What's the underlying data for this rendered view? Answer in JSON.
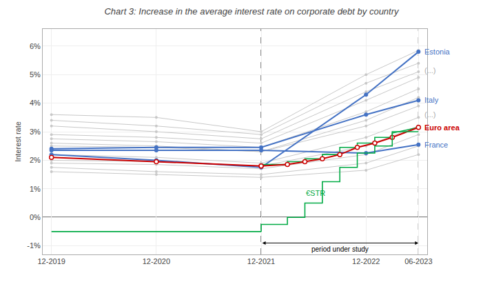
{
  "chart_data": {
    "type": "line",
    "title": "Chart 3: Increase in the average interest rate on corporate debt by country",
    "ylabel": "Interest rate",
    "xlim": [
      -1,
      43
    ],
    "xticks": [
      {
        "value": 0,
        "label": "12-2019"
      },
      {
        "value": 12,
        "label": "12-2020"
      },
      {
        "value": 24,
        "label": "12-2021"
      },
      {
        "value": 36,
        "label": "12-2022"
      },
      {
        "value": 42,
        "label": "06-2023"
      }
    ],
    "ylim": [
      -1.3,
      6.6
    ],
    "yticks": [
      {
        "value": -1,
        "label": "-1%"
      },
      {
        "value": 0,
        "label": "0%"
      },
      {
        "value": 1,
        "label": "1%"
      },
      {
        "value": 2,
        "label": "2%"
      },
      {
        "value": 3,
        "label": "3%"
      },
      {
        "value": 4,
        "label": "4%"
      },
      {
        "value": 5,
        "label": "5%"
      },
      {
        "value": 6,
        "label": "6%"
      }
    ],
    "grid": true,
    "series": [
      {
        "x": [
          0,
          12,
          24,
          36,
          42
        ],
        "values": [
          3.6,
          3.5,
          3.0,
          5.0,
          5.85
        ],
        "color": "#C8C8C8",
        "marker": "small_circle",
        "line_style": "solid"
      },
      {
        "x": [
          0,
          12,
          24,
          36,
          42
        ],
        "values": [
          3.4,
          3.2,
          2.9,
          4.7,
          5.4
        ],
        "color": "#C8C8C8",
        "marker": "small_circle",
        "line_style": "solid"
      },
      {
        "x": [
          0,
          12,
          24,
          36,
          42
        ],
        "values": [
          3.2,
          3.0,
          2.75,
          4.4,
          5.1
        ],
        "color": "#C8C8C8",
        "marker": "small_circle",
        "line_style": "solid"
      },
      {
        "x": [
          0,
          12,
          24,
          36,
          42
        ],
        "values": [
          2.9,
          2.8,
          2.6,
          4.1,
          4.9
        ],
        "color": "#C8C8C8",
        "marker": "small_circle",
        "line_style": "solid"
      },
      {
        "x": [
          0,
          12,
          24,
          36,
          42
        ],
        "values": [
          2.75,
          2.65,
          2.45,
          3.7,
          4.5
        ],
        "color": "#C8C8C8",
        "marker": "small_circle",
        "line_style": "solid"
      },
      {
        "x": [
          0,
          12,
          24,
          36,
          42
        ],
        "values": [
          2.6,
          2.5,
          2.3,
          3.4,
          4.2
        ],
        "color": "#C8C8C8",
        "marker": "small_circle",
        "line_style": "solid"
      },
      {
        "x": [
          0,
          12,
          24,
          36,
          42
        ],
        "values": [
          2.5,
          2.45,
          2.3,
          3.2,
          3.9
        ],
        "color": "#C8C8C8",
        "marker": "small_circle",
        "line_style": "solid"
      },
      {
        "x": [
          0,
          12,
          24,
          36,
          42
        ],
        "values": [
          2.2,
          2.1,
          1.9,
          2.8,
          3.5
        ],
        "color": "#C8C8C8",
        "marker": "small_circle",
        "line_style": "solid"
      },
      {
        "x": [
          0,
          12,
          24,
          36,
          42
        ],
        "values": [
          2.0,
          1.95,
          1.8,
          2.5,
          3.2
        ],
        "color": "#C8C8C8",
        "marker": "small_circle",
        "line_style": "solid"
      },
      {
        "x": [
          0,
          12,
          24,
          36,
          42
        ],
        "values": [
          1.9,
          1.85,
          1.7,
          2.2,
          2.9
        ],
        "color": "#C8C8C8",
        "marker": "small_circle",
        "line_style": "solid"
      },
      {
        "x": [
          0,
          12,
          24,
          36,
          42
        ],
        "values": [
          1.75,
          1.6,
          1.5,
          1.9,
          2.5
        ],
        "color": "#C8C8C8",
        "marker": "small_circle",
        "line_style": "solid"
      },
      {
        "x": [
          0,
          12,
          24,
          36,
          42
        ],
        "values": [
          1.6,
          1.5,
          1.4,
          1.65,
          2.2
        ],
        "color": "#C8C8C8",
        "marker": "small_circle",
        "line_style": "solid"
      },
      {
        "x": [
          0,
          12,
          24,
          36,
          42
        ],
        "values": [
          2.2,
          2.0,
          1.75,
          4.3,
          5.8
        ],
        "color": "#4472C4",
        "marker": "circle",
        "line_style": "solid"
      },
      {
        "x": [
          0,
          12,
          24,
          36,
          42
        ],
        "values": [
          2.4,
          2.45,
          2.45,
          3.6,
          4.1
        ],
        "color": "#4472C4",
        "marker": "circle",
        "line_style": "solid"
      },
      {
        "x": [
          0,
          12,
          24,
          36,
          42
        ],
        "values": [
          2.35,
          2.35,
          2.35,
          2.25,
          2.55
        ],
        "color": "#4472C4",
        "marker": "circle",
        "line_style": "solid"
      },
      {
        "x": [
          0,
          12,
          24
        ],
        "values": [
          2.1,
          1.95,
          1.8
        ],
        "color": "#CC0000",
        "marker": "open_circle",
        "line_style": "solid"
      },
      {
        "x": [
          24,
          24,
          27,
          27,
          29,
          29,
          31,
          31,
          33,
          33,
          35,
          35,
          37,
          37,
          39,
          39,
          42
        ],
        "values": [
          1.8,
          1.85,
          1.85,
          1.95,
          1.95,
          2.05,
          2.05,
          2.2,
          2.2,
          2.45,
          2.45,
          2.6,
          2.6,
          2.8,
          2.8,
          2.95,
          3.15
        ],
        "color": "#00AA44",
        "marker": "none",
        "line_style": "solid"
      },
      {
        "x": [
          24,
          27,
          29,
          31,
          33,
          35,
          37,
          39,
          42
        ],
        "values": [
          1.8,
          1.85,
          1.95,
          2.05,
          2.2,
          2.45,
          2.6,
          2.8,
          3.15
        ],
        "color": "#CC0000",
        "marker": "open_circle",
        "line_style": "solid"
      },
      {
        "x": [
          0,
          24
        ],
        "values": [
          -0.5,
          -0.5
        ],
        "color": "#00AA44",
        "marker": "none",
        "line_style": "solid"
      },
      {
        "x": [
          24,
          24,
          27,
          27,
          29,
          29,
          31,
          31,
          33,
          33,
          35,
          35,
          37,
          37,
          39,
          39,
          42
        ],
        "values": [
          -0.5,
          -0.25,
          -0.25,
          0.0,
          0.0,
          0.5,
          0.5,
          1.25,
          1.25,
          1.75,
          1.75,
          2.25,
          2.25,
          2.5,
          2.5,
          3.0,
          3.0
        ],
        "color": "#00AA44",
        "marker": "none",
        "line_style": "solid"
      }
    ],
    "hlines": [
      {
        "value": 0,
        "color": "#000000",
        "line_style": "solid"
      }
    ],
    "vlines": [
      {
        "value": 24,
        "color": "#000000",
        "line_style": "dashed"
      },
      {
        "value": 42,
        "color": "#000000",
        "line_style": "dashed"
      }
    ],
    "annotations": [
      {
        "text": "Estonia",
        "x": 42.5,
        "y": 5.8,
        "color": "#4472C4"
      },
      {
        "text": "(...)",
        "x": 42.5,
        "y": 5.15,
        "color": "#AAAAAA"
      },
      {
        "text": "Italy",
        "x": 42.5,
        "y": 4.1,
        "color": "#4472C4"
      },
      {
        "text": "(...)",
        "x": 42.5,
        "y": 3.6,
        "color": "#AAAAAA"
      },
      {
        "text": "Euro area",
        "x": 42.5,
        "y": 3.15,
        "color": "#CC0000",
        "bold": true
      },
      {
        "text": "France",
        "x": 42.5,
        "y": 2.55,
        "color": "#4472C4"
      },
      {
        "text": "€STR",
        "x": 29,
        "y": 0.65,
        "color": "#00AA44",
        "anchor": "baseline"
      }
    ],
    "range_arrow": {
      "text": "period under study",
      "x_start": 24,
      "x_end": 42,
      "y": -0.9,
      "color": "#000000"
    }
  }
}
